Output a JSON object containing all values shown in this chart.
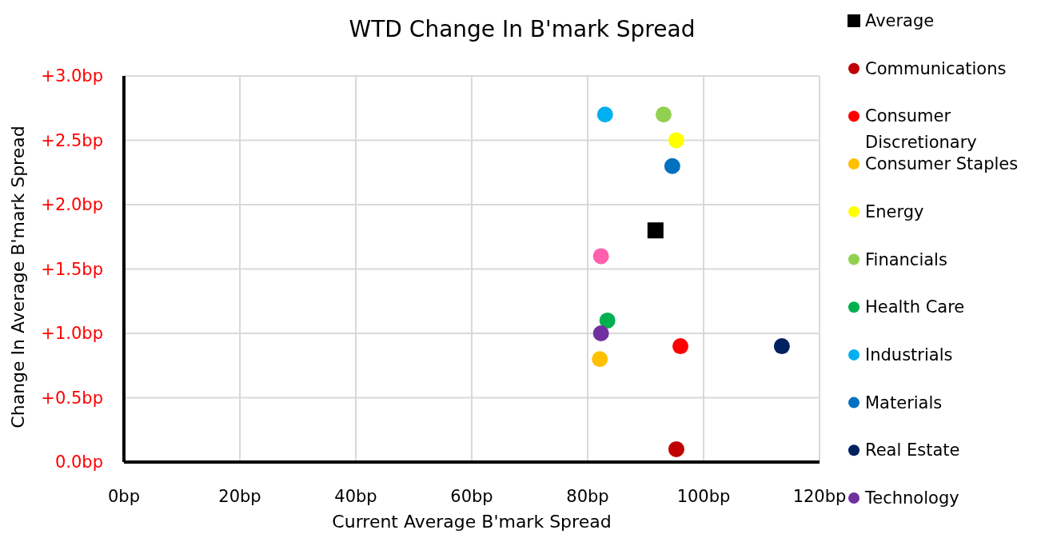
{
  "chart_data": {
    "type": "scatter",
    "title": "WTD Change In B'mark Spread",
    "xlabel": "Current Average B'mark Spread",
    "ylabel": "Change In Average B'mark Spread",
    "xlim": [
      0,
      120
    ],
    "ylim": [
      0,
      3
    ],
    "xticks": [
      {
        "value": 0,
        "label": "0bp"
      },
      {
        "value": 20,
        "label": "20bp"
      },
      {
        "value": 40,
        "label": "40bp"
      },
      {
        "value": 60,
        "label": "60bp"
      },
      {
        "value": 80,
        "label": "80bp"
      },
      {
        "value": 100,
        "label": "100bp"
      },
      {
        "value": 120,
        "label": "120bp"
      }
    ],
    "yticks": [
      {
        "value": 0,
        "label": "0.0bp"
      },
      {
        "value": 0.5,
        "label": "+0.5bp"
      },
      {
        "value": 1,
        "label": "+1.0bp"
      },
      {
        "value": 1.5,
        "label": "+1.5bp"
      },
      {
        "value": 2,
        "label": "+2.0bp"
      },
      {
        "value": 2.5,
        "label": "+2.5bp"
      },
      {
        "value": 3,
        "label": "+3.0bp"
      }
    ],
    "grid": true,
    "legend": "right",
    "marker": "circle",
    "series": [
      {
        "name": "Average",
        "color": "#000000",
        "marker": "square",
        "x": [
          91.7
        ],
        "values": [
          1.8
        ]
      },
      {
        "name": "Communications",
        "color": "#c00000",
        "x": [
          95.3
        ],
        "values": [
          0.1
        ]
      },
      {
        "name": "Consumer Discretionary",
        "color": "#ff0000",
        "x": [
          96.0
        ],
        "values": [
          0.9
        ]
      },
      {
        "name": "Consumer Staples",
        "color": "#ffc000",
        "x": [
          82.1
        ],
        "values": [
          0.8
        ]
      },
      {
        "name": "Energy",
        "color": "#ffff00",
        "x": [
          95.3
        ],
        "values": [
          2.5
        ]
      },
      {
        "name": "Financials",
        "color": "#92d050",
        "x": [
          93.1
        ],
        "values": [
          2.7
        ]
      },
      {
        "name": "Health Care",
        "color": "#00b050",
        "x": [
          83.4
        ],
        "values": [
          1.1
        ]
      },
      {
        "name": "Industrials",
        "color": "#00b0f0",
        "x": [
          83.0
        ],
        "values": [
          2.7
        ]
      },
      {
        "name": "Materials",
        "color": "#0070c0",
        "x": [
          94.6
        ],
        "values": [
          2.3
        ]
      },
      {
        "name": "Real Estate",
        "color": "#002060",
        "x": [
          113.5
        ],
        "values": [
          0.9
        ]
      },
      {
        "name": "Technology",
        "color": "#7030a0",
        "x": [
          82.3
        ],
        "values": [
          1.0
        ]
      },
      {
        "color": "#ff5fad",
        "x": [
          82.3
        ],
        "values": [
          1.6
        ]
      }
    ]
  }
}
